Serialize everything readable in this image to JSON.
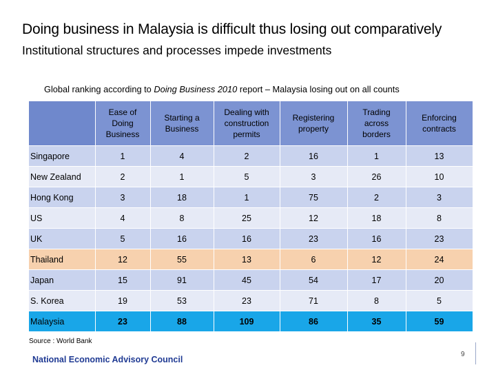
{
  "header": {
    "title": "Doing business in Malaysia is difficult thus losing out comparatively",
    "subtitle": "Institutional structures and processes impede investments"
  },
  "caption": {
    "prefix": "Global ranking according to ",
    "report": "Doing Business 2010",
    "suffix": " report – Malaysia losing out on all counts"
  },
  "table": {
    "columns": [
      "Ease of Doing Business",
      "Starting a Business",
      "Dealing with construction permits",
      "Registering property",
      "Trading across borders",
      "Enforcing contracts"
    ],
    "rows": [
      {
        "country": "Singapore",
        "values": [
          "1",
          "4",
          "2",
          "16",
          "1",
          "13"
        ]
      },
      {
        "country": "New Zealand",
        "values": [
          "2",
          "1",
          "5",
          "3",
          "26",
          "10"
        ]
      },
      {
        "country": "Hong Kong",
        "values": [
          "3",
          "18",
          "1",
          "75",
          "2",
          "3"
        ]
      },
      {
        "country": "US",
        "values": [
          "4",
          "8",
          "25",
          "12",
          "18",
          "8"
        ]
      },
      {
        "country": "UK",
        "values": [
          "5",
          "16",
          "16",
          "23",
          "16",
          "23"
        ]
      },
      {
        "country": "Thailand",
        "values": [
          "12",
          "55",
          "13",
          "6",
          "12",
          "24"
        ]
      },
      {
        "country": "Japan",
        "values": [
          "15",
          "91",
          "45",
          "54",
          "17",
          "20"
        ]
      },
      {
        "country": "S. Korea",
        "values": [
          "19",
          "53",
          "23",
          "71",
          "8",
          "5"
        ]
      },
      {
        "country": "Malaysia",
        "values": [
          "23",
          "88",
          "109",
          "86",
          "35",
          "59"
        ]
      }
    ]
  },
  "colors": {
    "header": "#7c93d2",
    "row_dark": "#c9d3ee",
    "row_light": "#e6eaf6",
    "highlight_thailand": "#f7d1ae",
    "highlight_malaysia": "#19a6e8"
  },
  "footer": {
    "source": "Source : World Bank",
    "organization": "National Economic Advisory Council",
    "page": "9"
  }
}
